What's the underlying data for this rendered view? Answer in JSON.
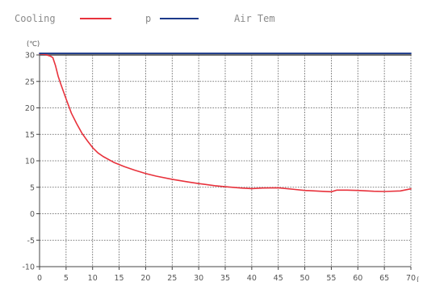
{
  "chart_data": {
    "type": "line",
    "title": "",
    "xlabel": "",
    "ylabel": "",
    "y_unit": "(℃)",
    "x_unit": "(",
    "xlim": [
      0,
      70
    ],
    "ylim": [
      -10,
      30
    ],
    "x_ticks": [
      0,
      5,
      10,
      15,
      20,
      25,
      30,
      35,
      40,
      45,
      50,
      55,
      60,
      65,
      70
    ],
    "y_ticks": [
      30,
      25,
      20,
      15,
      10,
      5,
      0,
      -5,
      -10
    ],
    "grid": true,
    "legend_position": "top",
    "series": [
      {
        "name": "Cooling",
        "color": "#e8323c",
        "x": [
          0,
          1,
          2,
          2.5,
          3,
          3.5,
          4,
          5,
          6,
          7,
          8,
          9,
          10,
          11,
          12,
          14,
          16,
          18,
          20,
          22,
          25,
          28,
          30,
          33,
          35,
          38,
          40,
          42,
          45,
          48,
          50,
          53,
          55,
          56,
          58,
          60,
          63,
          65,
          68,
          70
        ],
        "y": [
          30.2,
          30.1,
          29.8,
          29.5,
          28,
          26,
          24.5,
          21.7,
          19,
          17,
          15.2,
          13.8,
          12.5,
          11.5,
          10.8,
          9.7,
          8.9,
          8.2,
          7.6,
          7.1,
          6.5,
          6.0,
          5.7,
          5.3,
          5.1,
          4.85,
          4.75,
          4.85,
          4.9,
          4.6,
          4.4,
          4.25,
          4.15,
          4.45,
          4.45,
          4.4,
          4.25,
          4.2,
          4.3,
          4.7
        ]
      },
      {
        "name": "p",
        "color": "#1c3a8a",
        "x": [
          0,
          70
        ],
        "y": [
          30.3,
          30.3
        ]
      },
      {
        "name": "Air Tem",
        "color": "#5a5a5a",
        "x": [
          0,
          70
        ],
        "y": [
          30.0,
          30.0
        ]
      }
    ]
  }
}
